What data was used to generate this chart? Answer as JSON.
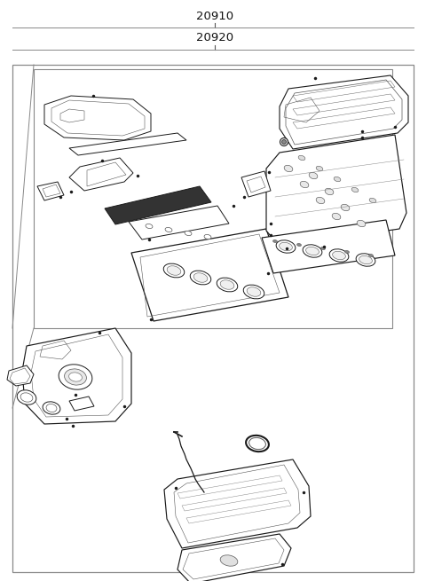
{
  "label_20910": "20910",
  "label_20920": "20920",
  "bg_color": "#ffffff",
  "fig_width": 4.8,
  "fig_height": 6.55,
  "dpi": 100,
  "lc": "#1a1a1a",
  "fc": "#ffffff"
}
